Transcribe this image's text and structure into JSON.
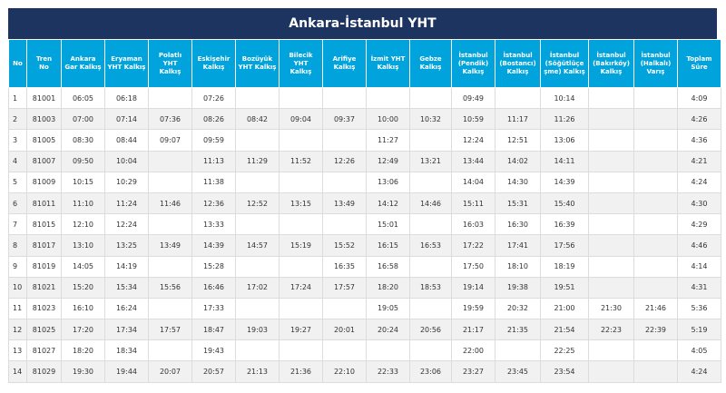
{
  "title": "Ankara-İstanbul YHT",
  "columns": [
    "No",
    "Tren\nNo",
    "Ankara\nGar Kalkış",
    "Eryaman\nYHT Kalkış",
    "Polatlı\nYHT\nKalkış",
    "Eskişehir\nKalkış",
    "Bozüyük\nYHT Kalkış",
    "Bilecik\nYHT\nKalkış",
    "Arifiye\nKalkış",
    "İzmit YHT\nKalkış",
    "Gebze\nKalkış",
    "İstanbul\n(Pendik)\nKalkış",
    "İstanbul\n(Bostancı)\nKalkış",
    "İstanbul\n(Söğütlüçe\nşme) Kalkış",
    "İstanbul\n(Bakırköy)\nKalkış",
    "İstanbul\n(Halkalı)\nVarış",
    "Toplam\nSüre"
  ],
  "rows": [
    [
      "1",
      "81001",
      "06:05",
      "06:18",
      "",
      "07:26",
      "",
      "",
      "",
      "",
      "",
      "09:49",
      "",
      "10:14",
      "",
      "",
      "4:09"
    ],
    [
      "2",
      "81003",
      "07:00",
      "07:14",
      "07:36",
      "08:26",
      "08:42",
      "09:04",
      "09:37",
      "10:00",
      "10:32",
      "10:59",
      "11:17",
      "11:26",
      "",
      "",
      "4:26"
    ],
    [
      "3",
      "81005",
      "08:30",
      "08:44",
      "09:07",
      "09:59",
      "",
      "",
      "",
      "11:27",
      "",
      "12:24",
      "12:51",
      "13:06",
      "",
      "",
      "4:36"
    ],
    [
      "4",
      "81007",
      "09:50",
      "10:04",
      "",
      "11:13",
      "11:29",
      "11:52",
      "12:26",
      "12:49",
      "13:21",
      "13:44",
      "14:02",
      "14:11",
      "",
      "",
      "4:21"
    ],
    [
      "5",
      "81009",
      "10:15",
      "10:29",
      "",
      "11:38",
      "",
      "",
      "",
      "13:06",
      "",
      "14:04",
      "14:30",
      "14:39",
      "",
      "",
      "4:24"
    ],
    [
      "6",
      "81011",
      "11:10",
      "11:24",
      "11:46",
      "12:36",
      "12:52",
      "13:15",
      "13:49",
      "14:12",
      "14:46",
      "15:11",
      "15:31",
      "15:40",
      "",
      "",
      "4:30"
    ],
    [
      "7",
      "81015",
      "12:10",
      "12:24",
      "",
      "13:33",
      "",
      "",
      "",
      "15:01",
      "",
      "16:03",
      "16:30",
      "16:39",
      "",
      "",
      "4:29"
    ],
    [
      "8",
      "81017",
      "13:10",
      "13:25",
      "13:49",
      "14:39",
      "14:57",
      "15:19",
      "15:52",
      "16:15",
      "16:53",
      "17:22",
      "17:41",
      "17:56",
      "",
      "",
      "4:46"
    ],
    [
      "9",
      "81019",
      "14:05",
      "14:19",
      "",
      "15:28",
      "",
      "",
      "16:35",
      "16:58",
      "",
      "17:50",
      "18:10",
      "18:19",
      "",
      "",
      "4:14"
    ],
    [
      "10",
      "81021",
      "15:20",
      "15:34",
      "15:56",
      "16:46",
      "17:02",
      "17:24",
      "17:57",
      "18:20",
      "18:53",
      "19:14",
      "19:38",
      "19:51",
      "",
      "",
      "4:31"
    ],
    [
      "11",
      "81023",
      "16:10",
      "16:24",
      "",
      "17:33",
      "",
      "",
      "",
      "19:05",
      "",
      "19:59",
      "20:32",
      "21:00",
      "21:30",
      "21:46",
      "5:36"
    ],
    [
      "12",
      "81025",
      "17:20",
      "17:34",
      "17:57",
      "18:47",
      "19:03",
      "19:27",
      "20:01",
      "20:24",
      "20:56",
      "21:17",
      "21:35",
      "21:54",
      "22:23",
      "22:39",
      "5:19"
    ],
    [
      "13",
      "81027",
      "18:20",
      "18:34",
      "",
      "19:43",
      "",
      "",
      "",
      "",
      "",
      "22:00",
      "",
      "22:25",
      "",
      "",
      "4:05"
    ],
    [
      "14",
      "81029",
      "19:30",
      "19:44",
      "20:07",
      "20:57",
      "21:13",
      "21:36",
      "22:10",
      "22:33",
      "23:06",
      "23:27",
      "23:45",
      "23:54",
      "",
      "",
      "4:24"
    ]
  ]
}
